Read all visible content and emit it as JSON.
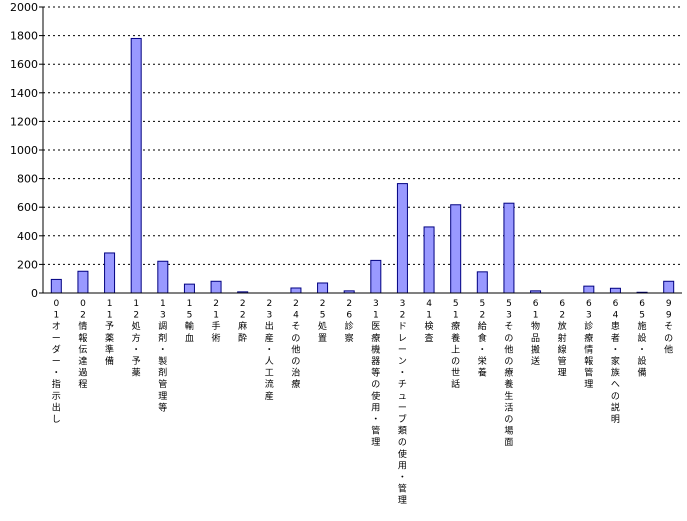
{
  "chart_data": {
    "type": "bar",
    "categories": [
      "01オーダー・指示出し",
      "02情報伝達過程",
      "11予薬準備",
      "12処方・予薬",
      "13調剤・製剤管理等",
      "15輸血",
      "21手術",
      "22麻酔",
      "23出産・人工流産",
      "24その他の治療",
      "25処置",
      "26診察",
      "31医療機器等の使用・管理",
      "32ドレーン・チューブ類の使用・管理",
      "41検査",
      "51療養上の世話",
      "52給食・栄養",
      "53その他の療養生活の場面",
      "61物品搬送",
      "62放射線管理",
      "63診療情報管理",
      "64患者・家族への説明",
      "65施設・設備",
      "99その他"
    ],
    "values": [
      95,
      152,
      280,
      1780,
      222,
      62,
      82,
      8,
      0,
      35,
      70,
      15,
      228,
      765,
      462,
      617,
      148,
      628,
      15,
      0,
      48,
      33,
      5,
      82
    ],
    "ylim": [
      0,
      2000
    ],
    "yticks": [
      "0",
      "200",
      "400",
      "600",
      "800",
      "1000",
      "1200",
      "1400",
      "1600",
      "1800",
      "2000"
    ],
    "grid": "horizontal dotted",
    "legend": "none",
    "bar_color": "#9999ff",
    "bar_edge_color": "#000080"
  }
}
